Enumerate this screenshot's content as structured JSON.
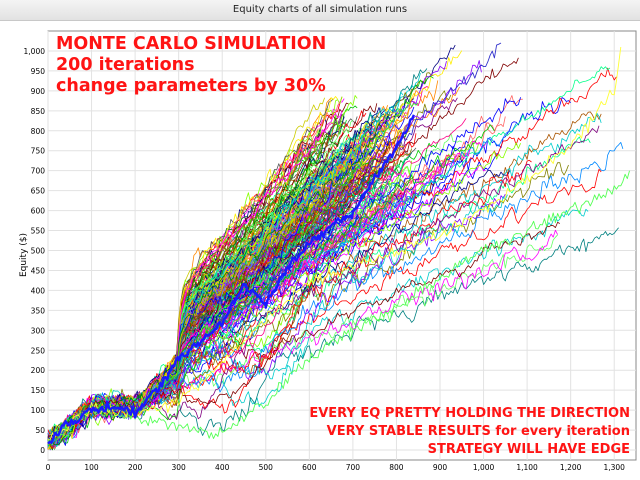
{
  "window": {
    "title": "Equity charts of all simulation runs"
  },
  "chart_data": {
    "type": "line",
    "title": "Equity charts of all simulation runs",
    "xlabel": "",
    "ylabel": "Equity ($)",
    "xlim": [
      0,
      1350
    ],
    "ylim": [
      -25,
      1050
    ],
    "xticks": [
      0,
      100,
      200,
      300,
      400,
      500,
      600,
      700,
      800,
      900,
      1000,
      1100,
      1200,
      1300
    ],
    "xtick_labels": [
      "0",
      "100",
      "200",
      "300",
      "400",
      "500",
      "600",
      "700",
      "800",
      "900",
      "1,000",
      "1,100",
      "1,200",
      "1,300"
    ],
    "yticks": [
      0,
      50,
      100,
      150,
      200,
      250,
      300,
      350,
      400,
      450,
      500,
      550,
      600,
      650,
      700,
      750,
      800,
      850,
      900,
      950,
      1000
    ],
    "ytick_labels": [
      "0",
      "50",
      "100",
      "150",
      "200",
      "250",
      "300",
      "350",
      "400",
      "450",
      "500",
      "550",
      "600",
      "650",
      "700",
      "750",
      "800",
      "850",
      "900",
      "950",
      "1,000"
    ],
    "grid": true,
    "series_count": 200,
    "highlight_color": "#1a1aff",
    "series_colors": [
      "#ff0000",
      "#00cc00",
      "#0000ff",
      "#ff00ff",
      "#00cccc",
      "#cccc00",
      "#800000",
      "#008000",
      "#000080",
      "#808000",
      "#800080",
      "#008080",
      "#ff8800",
      "#88ff00",
      "#0088ff",
      "#ff0088",
      "#8800ff",
      "#00ff88",
      "#555555",
      "#aa5500",
      "#ffee00",
      "#66ff66",
      "#ff6666",
      "#6666ff"
    ],
    "series_summary": [
      {
        "x": [
          0,
          100,
          200,
          300,
          400,
          500,
          600,
          700,
          800,
          850
        ],
        "y": [
          20,
          110,
          100,
          200,
          360,
          430,
          560,
          690,
          840,
          870
        ]
      },
      {
        "x": [
          0,
          100,
          200,
          300,
          400,
          500,
          600,
          700,
          800,
          900,
          1000,
          1040
        ],
        "y": [
          20,
          110,
          95,
          185,
          330,
          400,
          530,
          650,
          760,
          880,
          960,
          1020
        ]
      },
      {
        "x": [
          0,
          100,
          200,
          300,
          400,
          500,
          600,
          700,
          800,
          900,
          1000,
          1100,
          1200,
          1300,
          1335
        ],
        "y": [
          20,
          100,
          80,
          60,
          40,
          120,
          230,
          300,
          360,
          430,
          500,
          550,
          600,
          650,
          700
        ]
      },
      {
        "x": [
          0,
          100,
          200,
          300,
          400,
          500,
          600,
          700,
          800,
          900,
          1000,
          1100,
          1200,
          1300,
          1315
        ],
        "y": [
          20,
          105,
          90,
          120,
          220,
          330,
          420,
          460,
          500,
          540,
          600,
          680,
          760,
          900,
          1010
        ]
      }
    ],
    "highlight_series": {
      "x": [
        0,
        50,
        100,
        150,
        200,
        250,
        300,
        350,
        400,
        450,
        500,
        550,
        600,
        650,
        700,
        750,
        800,
        840
      ],
      "y": [
        20,
        70,
        100,
        110,
        95,
        150,
        230,
        270,
        320,
        410,
        370,
        460,
        520,
        560,
        590,
        680,
        760,
        840
      ]
    },
    "annotations": [
      "MONTE CARLO SIMULATION",
      "200 iterations",
      "change parameters by 30%",
      "EVERY EQ PRETTY HOLDING THE DIRECTION",
      "VERY STABLE RESULTS for every iteration",
      "STRATEGY WILL HAVE EDGE"
    ]
  }
}
